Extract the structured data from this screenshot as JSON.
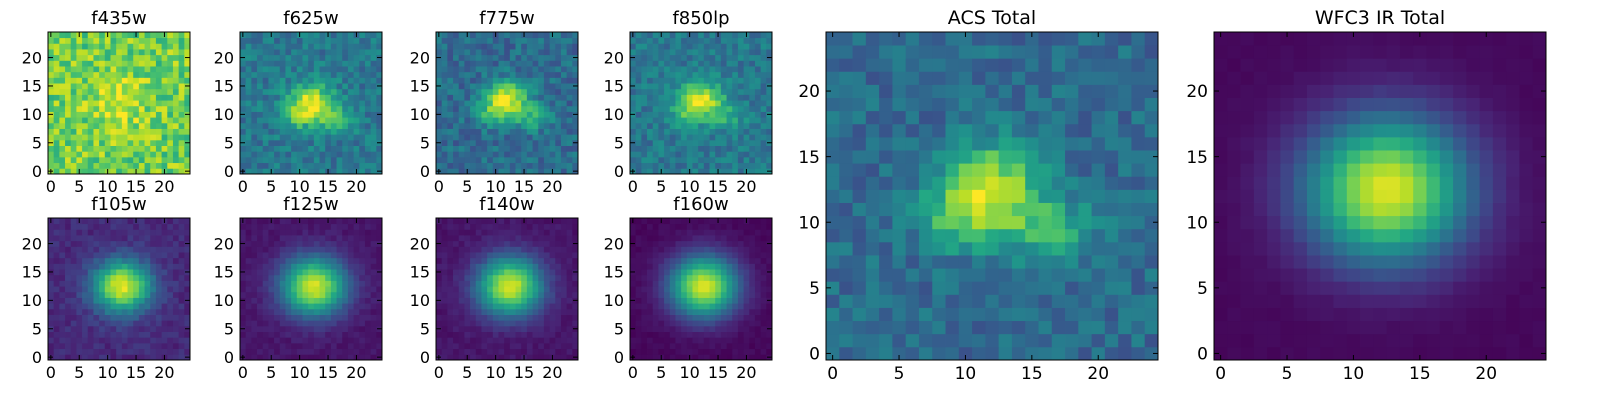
{
  "figure": {
    "colormap": "viridis"
  },
  "chart_data": [
    {
      "type": "heatmap",
      "title": "f435w",
      "xlim": [
        0,
        24
      ],
      "ylim": [
        0,
        24
      ],
      "xticks": [
        0,
        5,
        10,
        15,
        20
      ],
      "yticks": [
        0,
        5,
        10,
        15,
        20
      ],
      "grid": false,
      "source": {
        "x0": 12.0,
        "y0": 12.0,
        "sigma_x": 3.0,
        "sigma_y": 3.0,
        "amplitude": 0.2,
        "background": 0.78,
        "noise": 0.16
      }
    },
    {
      "type": "heatmap",
      "title": "f625w",
      "xlim": [
        0,
        24
      ],
      "ylim": [
        0,
        24
      ],
      "xticks": [
        0,
        5,
        10,
        15,
        20
      ],
      "yticks": [
        0,
        5,
        10,
        15,
        20
      ],
      "grid": false,
      "source": {
        "x0": 12.0,
        "y0": 12.0,
        "sigma_x": 2.8,
        "sigma_y": 2.4,
        "amplitude": 0.55,
        "background": 0.4,
        "noise": 0.11,
        "arm": 0.25
      }
    },
    {
      "type": "heatmap",
      "title": "f775w",
      "xlim": [
        0,
        24
      ],
      "ylim": [
        0,
        24
      ],
      "xticks": [
        0,
        5,
        10,
        15,
        20
      ],
      "yticks": [
        0,
        5,
        10,
        15,
        20
      ],
      "grid": false,
      "source": {
        "x0": 12.0,
        "y0": 12.5,
        "sigma_x": 2.6,
        "sigma_y": 2.3,
        "amplitude": 0.6,
        "background": 0.35,
        "noise": 0.11,
        "arm": 0.25
      }
    },
    {
      "type": "heatmap",
      "title": "f850lp",
      "xlim": [
        0,
        24
      ],
      "ylim": [
        0,
        24
      ],
      "xticks": [
        0,
        5,
        10,
        15,
        20
      ],
      "yticks": [
        0,
        5,
        10,
        15,
        20
      ],
      "grid": false,
      "source": {
        "x0": 12.0,
        "y0": 12.5,
        "sigma_x": 2.7,
        "sigma_y": 2.3,
        "amplitude": 0.55,
        "background": 0.4,
        "noise": 0.1,
        "arm": 0.2
      }
    },
    {
      "type": "heatmap",
      "title": "f105w",
      "xlim": [
        0,
        24
      ],
      "ylim": [
        0,
        24
      ],
      "xticks": [
        0,
        5,
        10,
        15,
        20
      ],
      "yticks": [
        0,
        5,
        10,
        15,
        20
      ],
      "grid": false,
      "source": {
        "x0": 12.5,
        "y0": 12.5,
        "sigma_x": 3.6,
        "sigma_y": 3.2,
        "amplitude": 0.85,
        "background": 0.12,
        "noise": 0.05
      }
    },
    {
      "type": "heatmap",
      "title": "f125w",
      "xlim": [
        0,
        24
      ],
      "ylim": [
        0,
        24
      ],
      "xticks": [
        0,
        5,
        10,
        15,
        20
      ],
      "yticks": [
        0,
        5,
        10,
        15,
        20
      ],
      "grid": false,
      "source": {
        "x0": 12.5,
        "y0": 12.5,
        "sigma_x": 4.0,
        "sigma_y": 3.6,
        "amplitude": 0.88,
        "background": 0.06,
        "noise": 0.03
      }
    },
    {
      "type": "heatmap",
      "title": "f140w",
      "xlim": [
        0,
        24
      ],
      "ylim": [
        0,
        24
      ],
      "xticks": [
        0,
        5,
        10,
        15,
        20
      ],
      "yticks": [
        0,
        5,
        10,
        15,
        20
      ],
      "grid": false,
      "source": {
        "x0": 12.5,
        "y0": 12.5,
        "sigma_x": 4.0,
        "sigma_y": 3.6,
        "amplitude": 0.88,
        "background": 0.06,
        "noise": 0.03
      }
    },
    {
      "type": "heatmap",
      "title": "f160w",
      "xlim": [
        0,
        24
      ],
      "ylim": [
        0,
        24
      ],
      "xticks": [
        0,
        5,
        10,
        15,
        20
      ],
      "yticks": [
        0,
        5,
        10,
        15,
        20
      ],
      "grid": false,
      "source": {
        "x0": 12.5,
        "y0": 12.5,
        "sigma_x": 4.2,
        "sigma_y": 3.8,
        "amplitude": 0.92,
        "background": 0.02,
        "noise": 0.02
      }
    },
    {
      "type": "heatmap",
      "title": "ACS Total",
      "xlim": [
        0,
        24
      ],
      "ylim": [
        0,
        24
      ],
      "xticks": [
        0,
        5,
        10,
        15,
        20
      ],
      "yticks": [
        0,
        5,
        10,
        15,
        20
      ],
      "grid": false,
      "source": {
        "x0": 12.0,
        "y0": 12.5,
        "sigma_x": 2.6,
        "sigma_y": 2.3,
        "amplitude": 0.6,
        "background": 0.35,
        "noise": 0.1,
        "arm": 0.28
      }
    },
    {
      "type": "heatmap",
      "title": "WFC3 IR Total",
      "xlim": [
        0,
        24
      ],
      "ylim": [
        0,
        24
      ],
      "xticks": [
        0,
        5,
        10,
        15,
        20
      ],
      "yticks": [
        0,
        5,
        10,
        15,
        20
      ],
      "grid": false,
      "source": {
        "x0": 12.5,
        "y0": 12.5,
        "sigma_x": 4.3,
        "sigma_y": 3.9,
        "amplitude": 0.93,
        "background": 0.02,
        "noise": 0.01
      }
    }
  ]
}
